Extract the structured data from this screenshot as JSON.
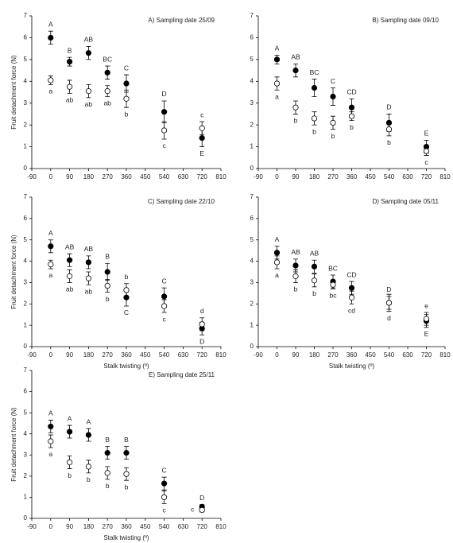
{
  "chart_data": [
    {
      "type": "scatter",
      "title": "A) Sampling date 25/09",
      "ylabel": "Fruit detachment force (N)",
      "x": [
        0,
        90,
        180,
        270,
        360,
        540,
        720
      ],
      "xlim": [
        -90,
        810
      ],
      "xticks": [
        -90,
        0,
        90,
        180,
        270,
        360,
        450,
        540,
        630,
        720,
        810
      ],
      "ylim": [
        0,
        7
      ],
      "yticks": [
        0,
        1,
        2,
        3,
        4,
        5,
        6,
        7
      ],
      "series": [
        {
          "color": "#000000",
          "fill": "#000000",
          "values": [
            6.0,
            4.9,
            5.3,
            4.4,
            3.9,
            2.6,
            1.4
          ],
          "errors": [
            0.3,
            0.2,
            0.3,
            0.3,
            0.4,
            0.5,
            0.4
          ],
          "labels": [
            "A",
            "B",
            "AB",
            "BC",
            "C",
            "D",
            "E"
          ],
          "label_positions": [
            "above",
            "above",
            "above",
            "above",
            "above",
            "above",
            "below"
          ]
        },
        {
          "color": "#000000",
          "fill": "#ffffff",
          "values": [
            4.05,
            3.75,
            3.55,
            3.55,
            3.2,
            1.75,
            1.85
          ],
          "errors": [
            0.2,
            0.3,
            0.3,
            0.25,
            0.4,
            0.4,
            0.3
          ],
          "labels": [
            "a",
            "ab",
            "ab",
            "ab",
            "b",
            "c",
            "c"
          ],
          "label_positions": [
            "below",
            "below",
            "below",
            "below",
            "below",
            "below",
            "above"
          ]
        }
      ]
    },
    {
      "type": "scatter",
      "title": "B) Sampling date 09/10",
      "x": [
        0,
        90,
        180,
        270,
        360,
        540,
        720
      ],
      "xlim": [
        -90,
        810
      ],
      "xticks": [
        -90,
        0,
        90,
        180,
        270,
        360,
        450,
        540,
        630,
        720,
        810
      ],
      "ylim": [
        0,
        7
      ],
      "yticks": [
        0,
        1,
        2,
        3,
        4,
        5,
        6,
        7
      ],
      "series": [
        {
          "color": "#000000",
          "fill": "#000000",
          "values": [
            5.0,
            4.5,
            3.7,
            3.3,
            2.8,
            2.1,
            1.0
          ],
          "errors": [
            0.2,
            0.3,
            0.4,
            0.4,
            0.4,
            0.4,
            0.3
          ],
          "labels": [
            "A",
            "AB",
            "BC",
            "C",
            "CD",
            "D",
            "E"
          ],
          "label_positions": [
            "above",
            "above",
            "above",
            "above",
            "above",
            "above",
            "above"
          ]
        },
        {
          "color": "#000000",
          "fill": "#ffffff",
          "values": [
            3.9,
            2.8,
            2.3,
            2.1,
            2.4,
            1.8,
            0.8
          ],
          "errors": [
            0.3,
            0.3,
            0.3,
            0.3,
            0.2,
            0.3,
            0.2
          ],
          "labels": [
            "a",
            "b",
            "b",
            "b",
            "b",
            "b",
            "c"
          ],
          "label_positions": [
            "below",
            "below",
            "below",
            "below",
            "below",
            "below",
            "below"
          ]
        }
      ]
    },
    {
      "type": "scatter",
      "title": "C) Sampling date 22/10",
      "ylabel": "Fruit detachment force (N)",
      "xlabel": "Stalk twisting (º)",
      "x": [
        0,
        90,
        180,
        270,
        360,
        540,
        720
      ],
      "xlim": [
        -90,
        810
      ],
      "xticks": [
        -90,
        0,
        90,
        180,
        270,
        360,
        450,
        540,
        630,
        720,
        810
      ],
      "ylim": [
        0,
        7
      ],
      "yticks": [
        0,
        1,
        2,
        3,
        4,
        5,
        6,
        7
      ],
      "series": [
        {
          "color": "#000000",
          "fill": "#000000",
          "values": [
            4.7,
            4.05,
            3.95,
            3.5,
            2.3,
            2.35,
            0.85
          ],
          "errors": [
            0.3,
            0.3,
            0.3,
            0.4,
            0.4,
            0.4,
            0.3
          ],
          "labels": [
            "A",
            "AB",
            "AB",
            "B",
            "C",
            "C",
            "D"
          ],
          "label_positions": [
            "above",
            "above",
            "above",
            "above",
            "below",
            "above",
            "below"
          ]
        },
        {
          "color": "#000000",
          "fill": "#ffffff",
          "values": [
            3.85,
            3.3,
            3.2,
            2.85,
            2.65,
            1.9,
            1.05
          ],
          "errors": [
            0.2,
            0.3,
            0.3,
            0.3,
            0.3,
            0.3,
            0.3
          ],
          "labels": [
            "a",
            "ab",
            "ab",
            "b",
            "b",
            "c",
            "d"
          ],
          "label_positions": [
            "below",
            "below",
            "below",
            "below",
            "above",
            "below",
            "above"
          ]
        }
      ]
    },
    {
      "type": "scatter",
      "title": "D) Sampling date 05/11",
      "xlabel": "Stalk twisting (º)",
      "x": [
        0,
        90,
        180,
        270,
        360,
        540,
        720
      ],
      "xlim": [
        -90,
        810
      ],
      "xticks": [
        -90,
        0,
        90,
        180,
        270,
        360,
        450,
        540,
        630,
        720,
        810
      ],
      "ylim": [
        0,
        7
      ],
      "yticks": [
        0,
        1,
        2,
        3,
        4,
        5,
        6,
        7
      ],
      "series": [
        {
          "color": "#000000",
          "fill": "#000000",
          "values": [
            4.4,
            3.8,
            3.75,
            3.05,
            2.75,
            2.05,
            1.2
          ],
          "errors": [
            0.3,
            0.3,
            0.3,
            0.3,
            0.3,
            0.3,
            0.3
          ],
          "labels": [
            "A",
            "AB",
            "AB",
            "BC",
            "CD",
            "D",
            "E"
          ],
          "label_positions": [
            "above",
            "above",
            "above",
            "above",
            "above",
            "above",
            "below"
          ]
        },
        {
          "color": "#000000",
          "fill": "#ffffff",
          "values": [
            3.95,
            3.3,
            3.1,
            2.9,
            2.3,
            2.05,
            1.3
          ],
          "errors": [
            0.3,
            0.3,
            0.3,
            0.2,
            0.3,
            0.4,
            0.3
          ],
          "labels": [
            "a",
            "b",
            "b",
            "bc",
            "cd",
            "d",
            "e"
          ],
          "label_positions": [
            "below",
            "below",
            "below",
            "below",
            "below",
            "below",
            "above"
          ]
        }
      ]
    },
    {
      "type": "scatter",
      "title": "E) Sampling date 25/11",
      "ylabel": "Fruit detachment force (N)",
      "xlabel": "Stalk twisting (º)",
      "x": [
        0,
        90,
        180,
        270,
        360,
        540,
        720
      ],
      "xlim": [
        -90,
        810
      ],
      "xticks": [
        -90,
        0,
        90,
        180,
        270,
        360,
        450,
        540,
        630,
        720,
        810
      ],
      "ylim": [
        0,
        7
      ],
      "yticks": [
        0,
        1,
        2,
        3,
        4,
        5,
        6,
        7
      ],
      "series": [
        {
          "color": "#000000",
          "fill": "#000000",
          "values": [
            4.35,
            4.1,
            3.95,
            3.1,
            3.1,
            1.65,
            0.55
          ],
          "errors": [
            0.3,
            0.3,
            0.3,
            0.3,
            0.3,
            0.3,
            0.1
          ],
          "labels": [
            "A",
            "A",
            "A",
            "B",
            "B",
            "C",
            "D"
          ],
          "label_positions": [
            "above",
            "above",
            "above",
            "above",
            "above",
            "above",
            "above"
          ]
        },
        {
          "color": "#000000",
          "fill": "#ffffff",
          "values": [
            3.65,
            2.65,
            2.45,
            2.15,
            2.1,
            1.0,
            0.4
          ],
          "errors": [
            0.3,
            0.3,
            0.3,
            0.3,
            0.3,
            0.3,
            0.1
          ],
          "labels": [
            "a",
            "b",
            "b",
            "b",
            "b",
            "c",
            "c"
          ],
          "label_positions": [
            "below",
            "below",
            "below",
            "below",
            "below",
            "below",
            "left"
          ]
        }
      ]
    }
  ]
}
